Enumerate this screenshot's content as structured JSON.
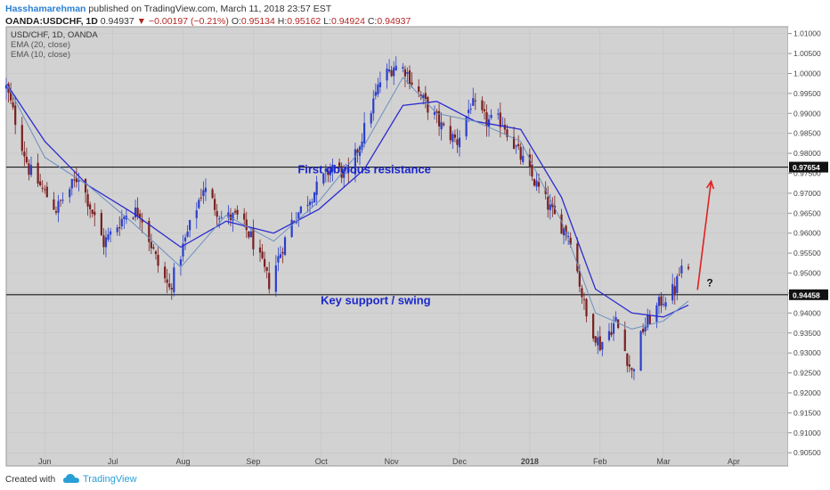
{
  "header": {
    "author": "Hasshamarehman",
    "published": "published on TradingView.com, March 11, 2018 23:57 EST",
    "symbol": "OANDA:USDCHF, 1D",
    "last": "0.94937",
    "change": "−0.00197 (−0.21%)",
    "o_label": "O:",
    "o_value": "0.95134",
    "h_label": "H:",
    "h_value": "0.95162",
    "l_label": "L:",
    "l_value": "0.94924",
    "c_label": "C:",
    "c_value": "0.94937"
  },
  "legend": {
    "line1": "USD/CHF, 1D, OANDA",
    "line2": "EMA (20, close)",
    "line3": "EMA (10, close)"
  },
  "footer": {
    "created": "Created with",
    "brand": "TradingView"
  },
  "colors": {
    "plot_bg": "#d2d2d2",
    "up": "#2a3fcc",
    "down": "#7a1f1f",
    "ema20": "#2b2bcf",
    "ema10": "#6a8fc0",
    "level": "#1a1a1a",
    "annotation_text": "#1a27c9",
    "arrow": "#e02020"
  },
  "chart_data": {
    "type": "candlestick",
    "ylim": [
      0.9017,
      1.0117
    ],
    "x_start": "2018-05-15",
    "x_end": "2018-04-24",
    "x_ticks": [
      {
        "label": "Jun",
        "date": "2017-06-01"
      },
      {
        "label": "Jul",
        "date": "2017-07-01"
      },
      {
        "label": "Aug",
        "date": "2017-08-01"
      },
      {
        "label": "Sep",
        "date": "2017-09-01"
      },
      {
        "label": "Oct",
        "date": "2017-10-01"
      },
      {
        "label": "Nov",
        "date": "2017-11-01"
      },
      {
        "label": "Dec",
        "date": "2017-12-01"
      },
      {
        "label": "2018",
        "date": "2018-01-01"
      },
      {
        "label": "Feb",
        "date": "2018-02-01"
      },
      {
        "label": "Mar",
        "date": "2018-03-01"
      },
      {
        "label": "Apr",
        "date": "2018-04-01"
      }
    ],
    "y_ticks": [
      "1.01000",
      "1.00500",
      "1.00000",
      "0.99500",
      "0.99000",
      "0.98500",
      "0.98000",
      "0.97500",
      "0.97000",
      "0.96500",
      "0.96000",
      "0.95500",
      "0.95000",
      "0.94500",
      "0.94000",
      "0.93500",
      "0.93000",
      "0.92500",
      "0.92000",
      "0.91500",
      "0.91000",
      "0.90500"
    ],
    "levels": [
      {
        "value": 0.97654,
        "label": "0.97654"
      },
      {
        "value": 0.94458,
        "label": "0.94458"
      }
    ],
    "annotations": [
      {
        "text": "First obvious resistance",
        "date": "2017-10-20",
        "y": 0.975
      },
      {
        "text": "Key support / swing",
        "date": "2017-10-25",
        "y": 0.9422
      },
      {
        "text": "?",
        "date": "2018-03-20",
        "y": 0.9467
      }
    ],
    "arrow": {
      "from_date": "2018-03-16",
      "from_y": 0.9458,
      "to_date": "2018-03-22",
      "to_y": 0.973
    },
    "close_path": [
      [
        "2017-05-15",
        0.9965
      ],
      [
        "2017-05-25",
        0.976
      ],
      [
        "2017-06-06",
        0.966
      ],
      [
        "2017-06-16",
        0.9745
      ],
      [
        "2017-06-27",
        0.9575
      ],
      [
        "2017-07-07",
        0.965
      ],
      [
        "2017-07-13",
        0.9655
      ],
      [
        "2017-07-21",
        0.952
      ],
      [
        "2017-07-26",
        0.946
      ],
      [
        "2017-08-03",
        0.96
      ],
      [
        "2017-08-10",
        0.9715
      ],
      [
        "2017-08-18",
        0.964
      ],
      [
        "2017-08-25",
        0.964
      ],
      [
        "2017-08-31",
        0.959
      ],
      [
        "2017-09-08",
        0.9475
      ],
      [
        "2017-09-18",
        0.963
      ],
      [
        "2017-09-28",
        0.9705
      ],
      [
        "2017-10-06",
        0.977
      ],
      [
        "2017-10-13",
        0.974
      ],
      [
        "2017-10-20",
        0.986
      ],
      [
        "2017-10-27",
        0.998
      ],
      [
        "2017-11-02",
        1.002
      ],
      [
        "2017-11-07",
        1.001
      ],
      [
        "2017-11-14",
        0.994
      ],
      [
        "2017-11-24",
        0.986
      ],
      [
        "2017-11-30",
        0.983
      ],
      [
        "2017-12-06",
        0.9925
      ],
      [
        "2017-12-13",
        0.988
      ],
      [
        "2017-12-20",
        0.988
      ],
      [
        "2017-12-27",
        0.98
      ],
      [
        "2018-01-03",
        0.973
      ],
      [
        "2018-01-12",
        0.964
      ],
      [
        "2018-01-19",
        0.959
      ],
      [
        "2018-01-26",
        0.939
      ],
      [
        "2018-02-01",
        0.932
      ],
      [
        "2018-02-08",
        0.938
      ],
      [
        "2018-02-15",
        0.925
      ],
      [
        "2018-02-20",
        0.936
      ],
      [
        "2018-02-28",
        0.943
      ],
      [
        "2018-03-06",
        0.946
      ],
      [
        "2018-03-09",
        0.9515
      ],
      [
        "2018-03-12",
        0.9494
      ]
    ],
    "ema20_path": [
      [
        "2017-05-15",
        0.9975
      ],
      [
        "2017-06-01",
        0.983
      ],
      [
        "2017-06-20",
        0.972
      ],
      [
        "2017-07-10",
        0.965
      ],
      [
        "2017-07-31",
        0.9565
      ],
      [
        "2017-08-20",
        0.963
      ],
      [
        "2017-09-10",
        0.96
      ],
      [
        "2017-09-30",
        0.966
      ],
      [
        "2017-10-20",
        0.976
      ],
      [
        "2017-11-06",
        0.992
      ],
      [
        "2017-11-21",
        0.993
      ],
      [
        "2017-12-08",
        0.988
      ],
      [
        "2017-12-28",
        0.986
      ],
      [
        "2018-01-15",
        0.969
      ],
      [
        "2018-01-30",
        0.946
      ],
      [
        "2018-02-15",
        0.94
      ],
      [
        "2018-03-01",
        0.939
      ],
      [
        "2018-03-12",
        0.942
      ]
    ],
    "ema10_path": [
      [
        "2017-05-15",
        0.9975
      ],
      [
        "2017-06-01",
        0.979
      ],
      [
        "2017-06-20",
        0.972
      ],
      [
        "2017-07-10",
        0.9625
      ],
      [
        "2017-07-31",
        0.9515
      ],
      [
        "2017-08-20",
        0.9645
      ],
      [
        "2017-09-10",
        0.958
      ],
      [
        "2017-09-30",
        0.968
      ],
      [
        "2017-10-20",
        0.982
      ],
      [
        "2017-11-06",
        0.999
      ],
      [
        "2017-11-21",
        0.99
      ],
      [
        "2017-12-08",
        0.988
      ],
      [
        "2017-12-28",
        0.983
      ],
      [
        "2018-01-15",
        0.963
      ],
      [
        "2018-01-30",
        0.94
      ],
      [
        "2018-02-15",
        0.936
      ],
      [
        "2018-03-01",
        0.938
      ],
      [
        "2018-03-12",
        0.943
      ]
    ],
    "title": "",
    "xlabel": "",
    "ylabel": ""
  }
}
